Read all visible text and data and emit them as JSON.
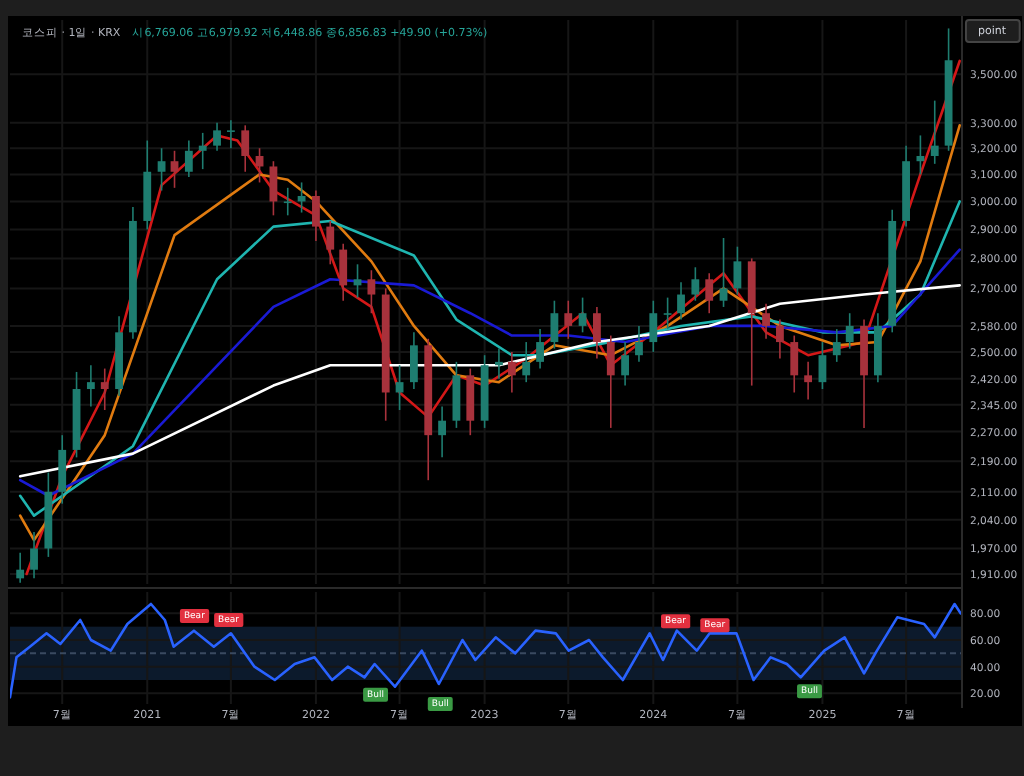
{
  "chart_data": [
    {
      "type": "candlestick",
      "title": "코스피 · 1일 · KRX",
      "subtitle": "시6,769.06 고6,979.92 저6,448.86 종6,856.83 +49.90 (+0.73%)",
      "annotations": [
        "point"
      ],
      "x": [
        "2020-04",
        "2020-05",
        "2020-06",
        "2020-07",
        "2020-08",
        "2020-09",
        "2020-10",
        "2020-11",
        "2020-12",
        "2021-01",
        "2021-02",
        "2021-03",
        "2021-04",
        "2021-05",
        "2021-06",
        "2021-07",
        "2021-08",
        "2021-09",
        "2021-10",
        "2021-11",
        "2021-12",
        "2022-01",
        "2022-02",
        "2022-03",
        "2022-04",
        "2022-05",
        "2022-06",
        "2022-07",
        "2022-08",
        "2022-09",
        "2022-10",
        "2022-11",
        "2022-12",
        "2023-01",
        "2023-02",
        "2023-03",
        "2023-04",
        "2023-05",
        "2023-06",
        "2023-07",
        "2023-08",
        "2023-09",
        "2023-10",
        "2023-11",
        "2023-12",
        "2024-01",
        "2024-02",
        "2024-03",
        "2024-04",
        "2024-05",
        "2024-06",
        "2024-07",
        "2024-08",
        "2024-09",
        "2024-10",
        "2024-11",
        "2024-12",
        "2025-01",
        "2025-02",
        "2025-03",
        "2025-04",
        "2025-05",
        "2025-06",
        "2025-07",
        "2025-08",
        "2025-09",
        "2025-10"
      ],
      "ohlc": [
        [
          1900,
          1960,
          1890,
          1920
        ],
        [
          1920,
          2010,
          1900,
          1970
        ],
        [
          1970,
          2160,
          1950,
          2110
        ],
        [
          2110,
          2260,
          2080,
          2220
        ],
        [
          2220,
          2440,
          2200,
          2390
        ],
        [
          2390,
          2460,
          2340,
          2410
        ],
        [
          2410,
          2450,
          2330,
          2390
        ],
        [
          2390,
          2610,
          2370,
          2560
        ],
        [
          2560,
          2980,
          2540,
          2930
        ],
        [
          2930,
          3230,
          2900,
          3110
        ],
        [
          3110,
          3200,
          3040,
          3150
        ],
        [
          3150,
          3190,
          3050,
          3110
        ],
        [
          3110,
          3230,
          3090,
          3190
        ],
        [
          3190,
          3260,
          3120,
          3210
        ],
        [
          3210,
          3300,
          3190,
          3270
        ],
        [
          3270,
          3310,
          3200,
          3270
        ],
        [
          3270,
          3290,
          3110,
          3170
        ],
        [
          3170,
          3200,
          3070,
          3130
        ],
        [
          3130,
          3150,
          2950,
          3000
        ],
        [
          3000,
          3050,
          2950,
          3000
        ],
        [
          3000,
          3070,
          2960,
          3020
        ],
        [
          3020,
          3040,
          2860,
          2910
        ],
        [
          2910,
          2930,
          2780,
          2830
        ],
        [
          2830,
          2850,
          2660,
          2710
        ],
        [
          2710,
          2780,
          2670,
          2730
        ],
        [
          2730,
          2760,
          2620,
          2680
        ],
        [
          2680,
          2700,
          2300,
          2380
        ],
        [
          2380,
          2460,
          2330,
          2410
        ],
        [
          2410,
          2560,
          2390,
          2520
        ],
        [
          2520,
          2540,
          2140,
          2260
        ],
        [
          2260,
          2340,
          2200,
          2300
        ],
        [
          2300,
          2470,
          2280,
          2430
        ],
        [
          2430,
          2450,
          2260,
          2300
        ],
        [
          2300,
          2490,
          2280,
          2460
        ],
        [
          2460,
          2510,
          2420,
          2470
        ],
        [
          2470,
          2500,
          2380,
          2430
        ],
        [
          2430,
          2530,
          2410,
          2470
        ],
        [
          2470,
          2570,
          2450,
          2530
        ],
        [
          2530,
          2660,
          2510,
          2620
        ],
        [
          2620,
          2660,
          2540,
          2580
        ],
        [
          2580,
          2670,
          2560,
          2620
        ],
        [
          2620,
          2640,
          2480,
          2530
        ],
        [
          2530,
          2550,
          2280,
          2430
        ],
        [
          2430,
          2530,
          2400,
          2490
        ],
        [
          2490,
          2580,
          2470,
          2530
        ],
        [
          2530,
          2660,
          2500,
          2620
        ],
        [
          2620,
          2670,
          2570,
          2620
        ],
        [
          2620,
          2720,
          2600,
          2680
        ],
        [
          2680,
          2770,
          2660,
          2730
        ],
        [
          2730,
          2750,
          2620,
          2660
        ],
        [
          2660,
          2870,
          2640,
          2700
        ],
        [
          2700,
          2840,
          2680,
          2790
        ],
        [
          2790,
          2800,
          2400,
          2620
        ],
        [
          2620,
          2650,
          2540,
          2580
        ],
        [
          2580,
          2600,
          2480,
          2530
        ],
        [
          2530,
          2550,
          2380,
          2430
        ],
        [
          2430,
          2470,
          2360,
          2410
        ],
        [
          2410,
          2530,
          2390,
          2490
        ],
        [
          2490,
          2570,
          2470,
          2530
        ],
        [
          2530,
          2620,
          2510,
          2580
        ],
        [
          2580,
          2600,
          2280,
          2430
        ],
        [
          2430,
          2620,
          2410,
          2580
        ],
        [
          2580,
          2970,
          2560,
          2930
        ],
        [
          2930,
          3210,
          2910,
          3150
        ],
        [
          3150,
          3250,
          3100,
          3170
        ],
        [
          3170,
          3390,
          3140,
          3210
        ],
        [
          3210,
          3700,
          3190,
          3560
        ]
      ],
      "series": [
        {
          "type": "line",
          "color": "#d41818",
          "x": [
            "2020-04-15",
            "2020-07",
            "2020-10",
            "2021-02",
            "2021-06",
            "2021-07-15",
            "2021-10",
            "2022-01",
            "2022-03",
            "2022-05",
            "2022-07",
            "2022-09",
            "2022-11",
            "2023-01",
            "2023-04",
            "2023-08",
            "2023-10",
            "2024-01",
            "2024-06",
            "2024-09",
            "2024-12",
            "2025-04",
            "2025-08",
            "2025-10-25"
          ],
          "values": [
            1910,
            2150,
            2380,
            3060,
            3250,
            3230,
            3040,
            2950,
            2700,
            2640,
            2380,
            2310,
            2430,
            2400,
            2480,
            2620,
            2460,
            2560,
            2750,
            2560,
            2490,
            2530,
            3100,
            3557
          ]
        },
        {
          "type": "line",
          "color": "#e07b10",
          "x": [
            "2020-04",
            "2020-05",
            "2020-10",
            "2021-03",
            "2021-09",
            "2021-11",
            "2022-01",
            "2022-05",
            "2022-08",
            "2022-11",
            "2023-02",
            "2023-06",
            "2023-10",
            "2024-02",
            "2024-06",
            "2024-10",
            "2025-02",
            "2025-05",
            "2025-08",
            "2025-10-25"
          ],
          "values": [
            2050,
            1990,
            2260,
            2880,
            3100,
            3080,
            3000,
            2790,
            2580,
            2430,
            2410,
            2520,
            2490,
            2580,
            2700,
            2580,
            2520,
            2530,
            2790,
            3290
          ]
        },
        {
          "type": "line",
          "color": "#1fb5b0",
          "x": [
            "2020-04",
            "2020-05",
            "2020-12",
            "2021-06",
            "2021-10",
            "2022-02",
            "2022-08",
            "2022-11",
            "2023-03",
            "2023-05",
            "2023-10",
            "2024-03",
            "2024-08",
            "2025-01",
            "2025-05",
            "2025-08",
            "2025-10-25"
          ],
          "values": [
            2100,
            2050,
            2230,
            2730,
            2910,
            2930,
            2810,
            2600,
            2490,
            2490,
            2530,
            2580,
            2610,
            2560,
            2560,
            2680,
            3000
          ]
        },
        {
          "type": "line",
          "color": "#1a1ad4",
          "x": [
            "2020-04",
            "2020-06",
            "2020-12",
            "2021-10",
            "2022-02",
            "2022-08",
            "2022-12",
            "2023-03",
            "2023-07",
            "2023-11",
            "2024-05",
            "2024-09",
            "2025-02",
            "2025-06",
            "2025-10-25"
          ],
          "values": [
            2140,
            2100,
            2210,
            2640,
            2730,
            2710,
            2620,
            2550,
            2550,
            2530,
            2580,
            2580,
            2560,
            2580,
            2830
          ]
        },
        {
          "type": "line",
          "color": "#ffffff",
          "x": [
            "2020-04",
            "2020-12",
            "2021-10",
            "2022-02",
            "2022-08",
            "2023-02",
            "2023-09",
            "2024-05",
            "2024-10",
            "2025-04",
            "2025-10-25"
          ],
          "values": [
            2150,
            2210,
            2400,
            2460,
            2460,
            2460,
            2530,
            2580,
            2650,
            2680,
            2710
          ]
        }
      ],
      "log": true,
      "ylim": [
        1887,
        3738
      ],
      "yticks": [
        {
          "value": 1910,
          "label": "1,910.00"
        },
        {
          "value": 1970,
          "label": "1,970.00"
        },
        {
          "value": 2040,
          "label": "2,040.00"
        },
        {
          "value": 2110,
          "label": "2,110.00"
        },
        {
          "value": 2190,
          "label": "2,190.00"
        },
        {
          "value": 2270,
          "label": "2,270.00"
        },
        {
          "value": 2345,
          "label": "2,345.00"
        },
        {
          "value": 2420,
          "label": "2,420.00"
        },
        {
          "value": 2500,
          "label": "2,500.00"
        },
        {
          "value": 2580,
          "label": "2,580.00"
        },
        {
          "value": 2700,
          "label": "2,700.00"
        },
        {
          "value": 2800,
          "label": "2,800.00"
        },
        {
          "value": 2900,
          "label": "2,900.00"
        },
        {
          "value": 3000,
          "label": "3,000.00"
        },
        {
          "value": 3100,
          "label": "3,100.00"
        },
        {
          "value": 3200,
          "label": "3,200.00"
        },
        {
          "value": 3300,
          "label": "3,300.00"
        },
        {
          "value": 3500,
          "label": "3,500.00"
        }
      ],
      "xlim": [
        "2020-03-10",
        "2025-10-30"
      ],
      "xticks": [
        {
          "value": "2020-07-01",
          "label": null
        },
        {
          "value": "2021-01-01",
          "label": null
        },
        {
          "value": "2021-07-01",
          "label": null
        },
        {
          "value": "2022-01-01",
          "label": null
        },
        {
          "value": "2022-07-01",
          "label": null
        },
        {
          "value": "2023-01-01",
          "label": null
        },
        {
          "value": "2023-07-01",
          "label": null
        },
        {
          "value": "2024-01-01",
          "label": null
        },
        {
          "value": "2024-07-01",
          "label": null
        },
        {
          "value": "2025-01-01",
          "label": null
        },
        {
          "value": "2025-07-01",
          "label": null
        }
      ],
      "tick_labels": "y",
      "grid": true
    },
    {
      "type": "line",
      "series": [
        {
          "color": "#2962ff",
          "x": [
            "2020-03-10",
            "2020-03-24",
            "2020-04-22",
            "2020-05-28",
            "2020-06-27",
            "2020-08-09",
            "2020-09-01",
            "2020-10-14",
            "2020-11-19",
            "2021-01-09",
            "2021-02-08",
            "2021-02-27",
            "2021-04-12",
            "2021-05-25",
            "2021-07-01",
            "2021-08-21",
            "2021-10-04",
            "2021-11-16",
            "2021-12-29",
            "2022-02-05",
            "2022-03-11",
            "2022-04-16",
            "2022-05-08",
            "2022-06-21",
            "2022-08-18",
            "2022-09-24",
            "2022-11-14",
            "2022-12-12",
            "2023-01-25",
            "2023-03-08",
            "2023-04-21",
            "2023-06-04",
            "2023-07-02",
            "2023-08-15",
            "2023-09-14",
            "2023-10-27",
            "2023-12-24",
            "2024-01-22",
            "2024-02-21",
            "2024-04-04",
            "2024-05-02",
            "2024-06-29",
            "2024-08-05",
            "2024-09-11",
            "2024-10-16",
            "2024-11-15",
            "2025-01-05",
            "2025-02-18",
            "2025-04-01",
            "2025-04-29",
            "2025-06-12",
            "2025-08-09",
            "2025-09-01",
            "2025-10-14",
            "2025-10-27"
          ],
          "values": [
            17,
            47,
            55,
            65,
            57,
            75,
            60,
            52,
            72,
            87,
            75,
            55,
            67,
            55,
            65,
            40,
            30,
            42,
            47,
            30,
            40,
            32,
            42,
            25,
            52,
            27,
            60,
            45,
            62,
            50,
            67,
            65,
            52,
            60,
            47,
            30,
            65,
            45,
            67,
            52,
            65,
            65,
            30,
            47,
            42,
            32,
            52,
            62,
            35,
            52,
            77,
            72,
            62,
            87,
            80
          ]
        }
      ],
      "ylim": [
        12,
        96
      ],
      "yticks": [
        {
          "value": 20,
          "label": "20.00"
        },
        {
          "value": 40,
          "label": "40.00"
        },
        {
          "value": 60,
          "label": "60.00"
        },
        {
          "value": 80,
          "label": "80.00"
        }
      ],
      "bands": [
        {
          "axis": "y",
          "from": 30,
          "to": 70,
          "color": "#0c1a2c"
        }
      ],
      "ref_lines": [
        {
          "axis": "y",
          "value": 50,
          "color": "#3a4a60",
          "line_style": "dashed"
        }
      ],
      "annotations": [
        {
          "text": "Bear",
          "x": "2021-04-13",
          "y": 72
        },
        {
          "text": "Bear",
          "x": "2021-06-26",
          "y": 69
        },
        {
          "text": "Bull",
          "x": "2022-05-10",
          "y": 28
        },
        {
          "text": "Bull",
          "x": "2022-09-27",
          "y": 21
        },
        {
          "text": "Bear",
          "x": "2024-02-18",
          "y": 68
        },
        {
          "text": "Bear",
          "x": "2024-05-13",
          "y": 65
        },
        {
          "text": "Bull",
          "x": "2024-12-04",
          "y": 30.5
        }
      ],
      "xlim": [
        "2020-03-10",
        "2025-10-30"
      ],
      "xticks": [
        {
          "value": "2020-07-01",
          "label": "7월"
        },
        {
          "value": "2021-01-01",
          "label": "2021"
        },
        {
          "value": "2021-07-01",
          "label": "7월"
        },
        {
          "value": "2022-01-01",
          "label": "2022"
        },
        {
          "value": "2022-07-01",
          "label": "7월"
        },
        {
          "value": "2023-01-01",
          "label": "2023"
        },
        {
          "value": "2023-07-01",
          "label": "7월"
        },
        {
          "value": "2024-01-01",
          "label": "2024"
        },
        {
          "value": "2024-07-01",
          "label": "7월"
        },
        {
          "value": "2025-01-01",
          "label": "2025"
        },
        {
          "value": "2025-07-01",
          "label": "7월"
        }
      ],
      "grid": true
    }
  ]
}
